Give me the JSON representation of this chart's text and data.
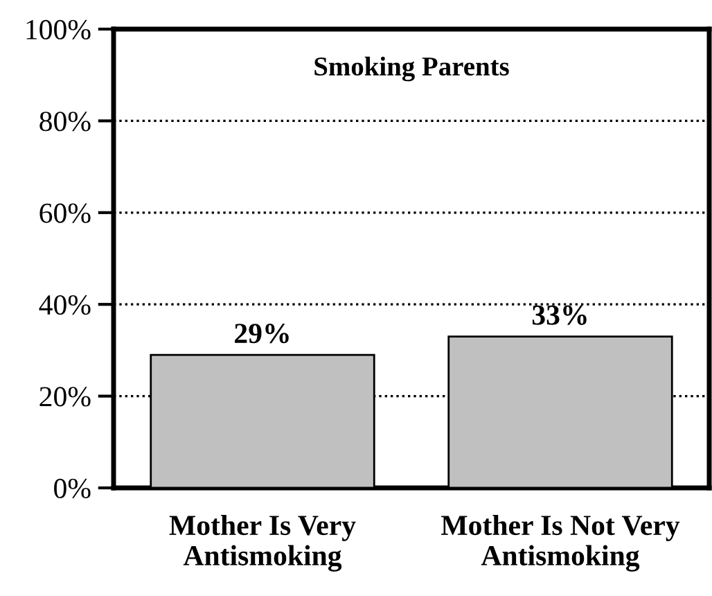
{
  "chart_data": {
    "type": "bar",
    "title": "Smoking Parents",
    "categories": [
      "Mother Is Very\nAntismoking",
      "Mother Is Not Very\nAntismoking"
    ],
    "values": [
      29,
      33
    ],
    "value_labels": [
      "29%",
      "33%"
    ],
    "color": "#c0c0c0",
    "ylim": [
      0,
      100
    ],
    "yticks": [
      {
        "value": 0,
        "label": "0%"
      },
      {
        "value": 20,
        "label": "20%"
      },
      {
        "value": 40,
        "label": "40%"
      },
      {
        "value": 60,
        "label": "60%"
      },
      {
        "value": 80,
        "label": "80%"
      },
      {
        "value": 100,
        "label": "100%"
      }
    ],
    "grid": "y"
  }
}
